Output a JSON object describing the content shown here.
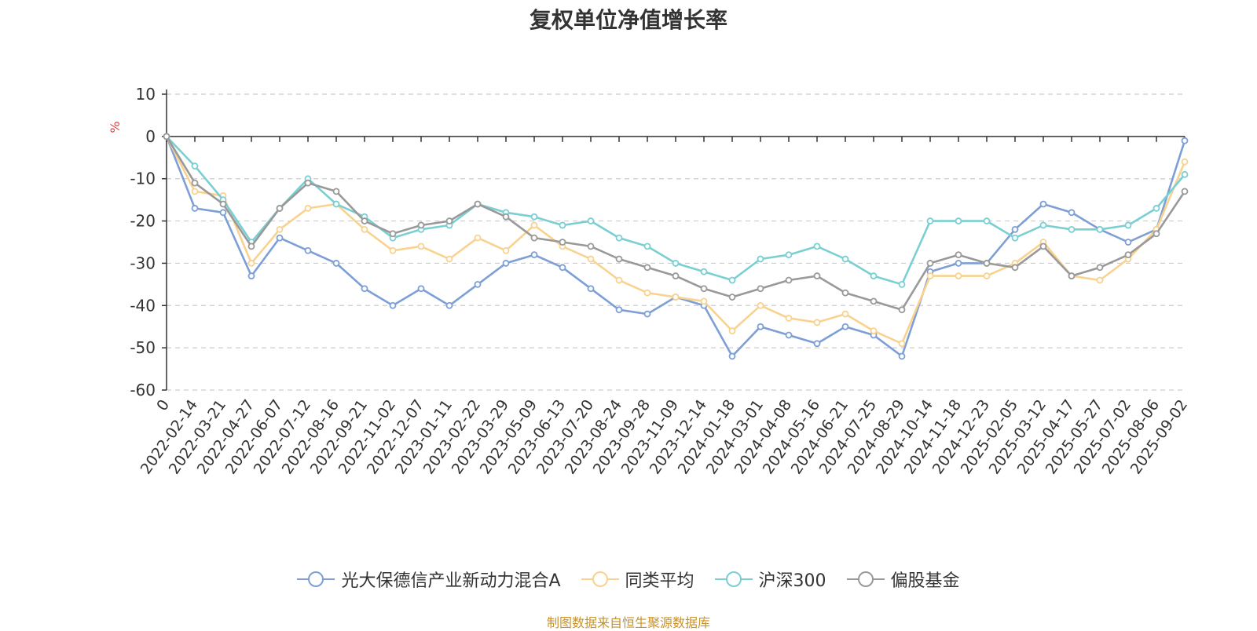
{
  "footer": "制图数据来自恒生聚源数据库",
  "chart_data": {
    "type": "line",
    "title": "复权单位净值增长率",
    "ylabel": "%",
    "ylim": [
      -60,
      10
    ],
    "yticks": [
      10,
      0,
      -10,
      -20,
      -30,
      -40,
      -50,
      -60
    ],
    "grid": true,
    "legend_position": "bottom",
    "x_ticks": [
      "0",
      "2022-02-14",
      "2022-03-21",
      "2022-04-27",
      "2022-06-07",
      "2022-07-12",
      "2022-08-16",
      "2022-09-21",
      "2022-11-02",
      "2022-12-07",
      "2023-01-11",
      "2023-02-22",
      "2023-03-29",
      "2023-05-09",
      "2023-06-13",
      "2023-07-20",
      "2023-08-24",
      "2023-09-28",
      "2023-11-09",
      "2023-12-14",
      "2024-01-18",
      "2024-03-01",
      "2024-04-08",
      "2024-05-16",
      "2024-06-21",
      "2024-07-25",
      "2024-08-29",
      "2024-10-14",
      "2024-11-18",
      "2024-12-23",
      "2025-02-05",
      "2025-03-12",
      "2025-04-17",
      "2025-05-27",
      "2025-07-02",
      "2025-08-06",
      "2025-09-02"
    ],
    "x_points": [
      "0",
      "2022-02-14",
      "2022-03-21",
      "2022-04-27",
      "2022-06-07",
      "2022-07-12",
      "2022-08-16",
      "2022-09-21",
      "2022-11-02",
      "2022-12-07",
      "2023-01-11",
      "2023-02-22",
      "2023-03-29",
      "2023-05-09",
      "2023-06-13",
      "2023-07-20",
      "2023-08-24",
      "2023-09-28",
      "2023-11-09",
      "2023-12-14",
      "2024-01-18",
      "2024-03-01",
      "2024-04-08",
      "2024-05-16",
      "2024-06-21",
      "2024-07-25",
      "2024-08-29",
      "2024-10-14",
      "2024-11-18",
      "2024-12-23",
      "2025-02-05",
      "2025-03-12",
      "2025-04-17",
      "2025-05-27",
      "2025-07-02",
      "2025-08-06",
      "2025-09-02"
    ],
    "series": [
      {
        "name": "光大保德信产业新动力混合A",
        "color": "#7d9fd6",
        "values": [
          0,
          -17,
          -18,
          -33,
          -24,
          -27,
          -30,
          -36,
          -40,
          -36,
          -40,
          -35,
          -30,
          -28,
          -31,
          -36,
          -41,
          -42,
          -38,
          -40,
          -52,
          -45,
          -47,
          -49,
          -45,
          -47,
          -52,
          -32,
          -30,
          -30,
          -22,
          -16,
          -18,
          -22,
          -25,
          -22,
          -1
        ]
      },
      {
        "name": "同类平均",
        "color": "#f8d28e",
        "values": [
          0,
          -13,
          -14,
          -30,
          -22,
          -17,
          -16,
          -22,
          -27,
          -26,
          -29,
          -24,
          -27,
          -21,
          -26,
          -29,
          -34,
          -37,
          -38,
          -39,
          -46,
          -40,
          -43,
          -44,
          -42,
          -46,
          -49,
          -33,
          -33,
          -33,
          -30,
          -25,
          -33,
          -34,
          -29,
          -22,
          -6
        ]
      },
      {
        "name": "沪深300",
        "color": "#7acfd2",
        "values": [
          0,
          -7,
          -15,
          -25,
          -17,
          -10,
          -16,
          -19,
          -24,
          -22,
          -21,
          -16,
          -18,
          -19,
          -21,
          -20,
          -24,
          -26,
          -30,
          -32,
          -34,
          -29,
          -28,
          -26,
          -29,
          -33,
          -35,
          -20,
          -20,
          -20,
          -24,
          -21,
          -22,
          -22,
          -21,
          -17,
          -9
        ]
      },
      {
        "name": "偏股基金",
        "color": "#999999",
        "values": [
          0,
          -11,
          -16,
          -26,
          -17,
          -11,
          -13,
          -20,
          -23,
          -21,
          -20,
          -16,
          -19,
          -24,
          -25,
          -26,
          -29,
          -31,
          -33,
          -36,
          -38,
          -36,
          -34,
          -33,
          -37,
          -39,
          -41,
          -30,
          -28,
          -30,
          -31,
          -26,
          -33,
          -31,
          -28,
          -23,
          -13
        ]
      }
    ]
  }
}
